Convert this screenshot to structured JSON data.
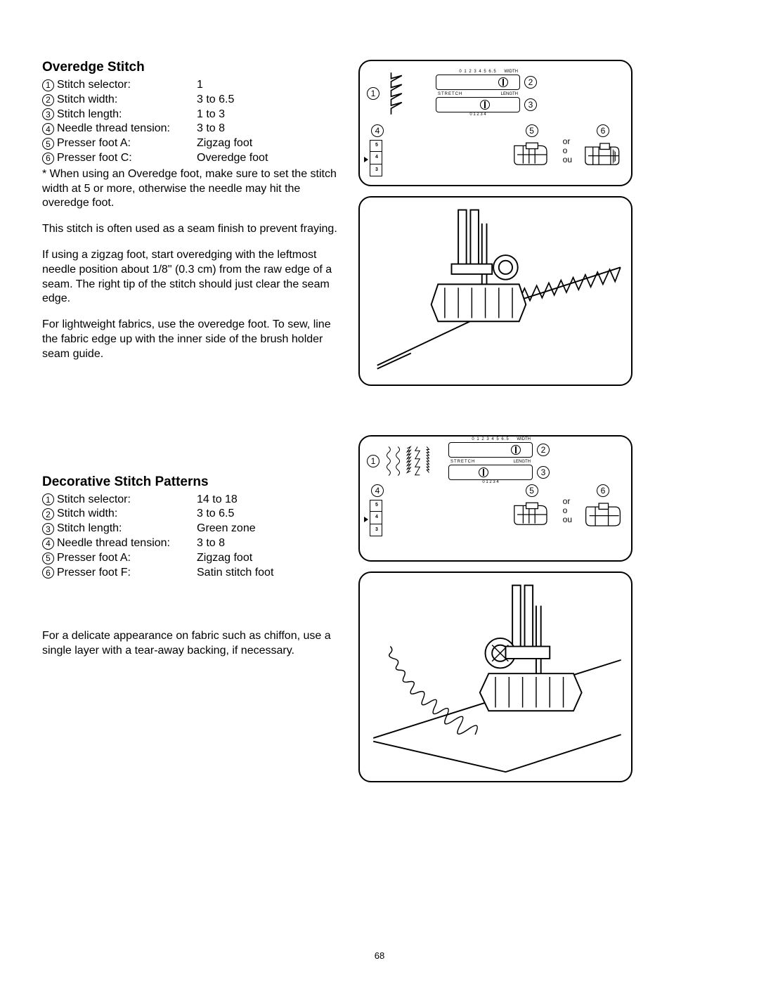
{
  "pageNumber": "68",
  "section1": {
    "title": "Overedge Stitch",
    "settings": [
      {
        "num": "1",
        "label": "Stitch selector:",
        "value": "1"
      },
      {
        "num": "2",
        "label": "Stitch width:",
        "value": "3 to 6.5"
      },
      {
        "num": "3",
        "label": "Stitch length:",
        "value": "1 to 3"
      },
      {
        "num": "4",
        "label": "Needle thread tension:",
        "value": "3 to 8"
      },
      {
        "num": "5",
        "label": "Presser foot A:",
        "value": "Zigzag foot"
      },
      {
        "num": "6",
        "label": "Presser foot C:",
        "value": "Overedge foot"
      }
    ],
    "note": "* When using an Overedge foot, make sure to set the stitch width at 5 or more, otherwise the needle may hit the overedge foot.",
    "para1": "This stitch is often used as a seam finish to prevent fraying.",
    "para2": "If using a zigzag foot, start overedging with the leftmost needle position about 1/8\" (0.3 cm) from the raw edge of a seam. The right tip of the stitch should just clear the seam edge.",
    "para3": "For lightweight fabrics, use the overedge foot. To sew, line the fabric edge up with the inner side of the brush holder seam guide.",
    "diagram": {
      "callouts": [
        "1",
        "2",
        "3",
        "4",
        "5",
        "6"
      ],
      "widthDial": {
        "scale": "0 1 2 3 4 5 6.5",
        "label": "WIDTH",
        "knobPos": 88
      },
      "lengthDial": {
        "leftLabel": "STRETCH",
        "scale": "0 1 2 3 4",
        "label": "LENGTH",
        "knobPos": 62
      },
      "tension": {
        "nums": [
          "5",
          "4",
          "3"
        ]
      },
      "orText": [
        "or",
        "o",
        "ou"
      ]
    }
  },
  "section2": {
    "title": "Decorative Stitch Patterns",
    "settings": [
      {
        "num": "1",
        "label": "Stitch selector:",
        "value": "14 to 18"
      },
      {
        "num": "2",
        "label": "Stitch width:",
        "value": "3 to 6.5"
      },
      {
        "num": "3",
        "label": "Stitch length:",
        "value": "Green zone"
      },
      {
        "num": "4",
        "label": "Needle thread tension:",
        "value": "3 to 8"
      },
      {
        "num": "5",
        "label": "Presser foot A:",
        "value": "Zigzag foot"
      },
      {
        "num": "6",
        "label": "Presser foot F:",
        "value": "Satin stitch foot"
      }
    ],
    "para1": "For a delicate appearance on fabric such as chiffon, use a single layer with a tear-away backing, if necessary.",
    "diagram": {
      "callouts": [
        "1",
        "2",
        "3",
        "4",
        "5",
        "6"
      ],
      "widthDial": {
        "scale": "0 1 2 3 4 5 6.5",
        "label": "WIDTH",
        "knobPos": 88
      },
      "lengthDial": {
        "leftLabel": "STRETCH",
        "scale": "0 1 2 3 4",
        "label": "LENGTH",
        "knobPos": 42
      },
      "tension": {
        "nums": [
          "5",
          "4",
          "3"
        ]
      },
      "orText": [
        "or",
        "o",
        "ou"
      ]
    }
  }
}
